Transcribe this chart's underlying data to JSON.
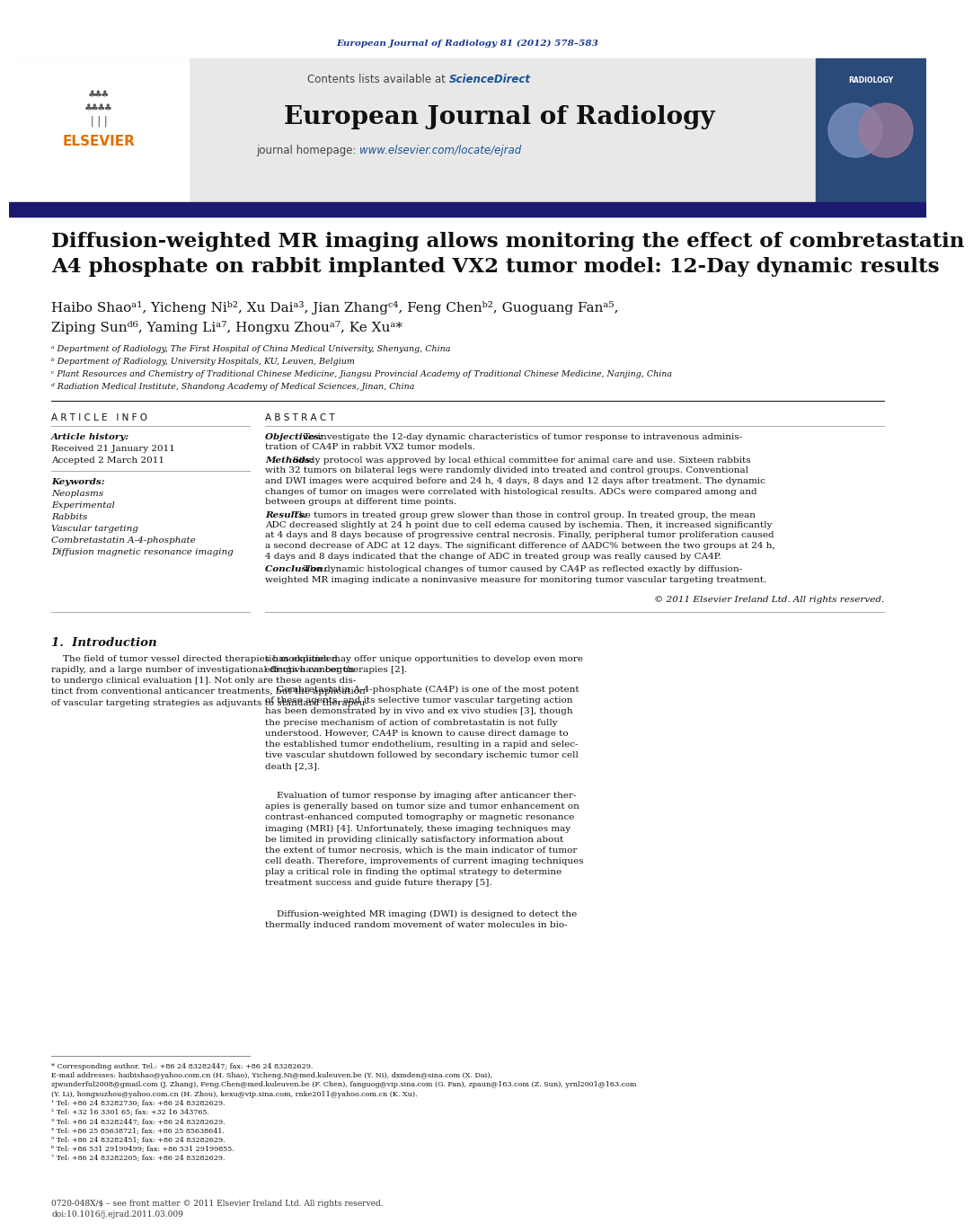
{
  "page_bg": "#ffffff",
  "top_journal_ref": "European Journal of Radiology 81 (2012) 578–583",
  "top_journal_ref_color": "#1a3a8c",
  "header_bg": "#e8e8e8",
  "header_text": "Contents lists available at",
  "sciencedirect_text": "ScienceDirect",
  "sciencedirect_color": "#1a5296",
  "journal_name": "European Journal of Radiology",
  "journal_homepage_label": "journal homepage:",
  "journal_homepage_url": "www.elsevier.com/locate/ejrad",
  "journal_homepage_color": "#1a5296",
  "nav_bar_color": "#1a1a6e",
  "article_title": "Diffusion-weighted MR imaging allows monitoring the effect of combretastatin\nA4 phosphate on rabbit implanted VX2 tumor model: 12-Day dynamic results",
  "authors_line1": "Haibo Shaoᵃ¹, Yicheng Niᵇ², Xu Daiᵃ³, Jian Zhangᶜ⁴, Feng Chenᵇ², Guoguang Fanᵃ⁵,",
  "authors_line2": "Ziping Sunᵈ⁶, Yaming Liᵃ⁷, Hongxu Zhouᵃ⁷, Ke Xuᵃ*",
  "affil_a": "ᵃ Department of Radiology, The First Hospital of China Medical University, Shenyang, China",
  "affil_b": "ᵇ Department of Radiology, University Hospitals, KU, Leuven, Belgium",
  "affil_c": "ᶜ Plant Resources and Chemistry of Traditional Chinese Medicine, Jiangsu Provincial Academy of Traditional Chinese Medicine, Nanjing, China",
  "affil_d": "ᵈ Radiation Medical Institute, Shandong Academy of Medical Sciences, Jinan, China",
  "article_info_header": "A R T I C L E   I N F O",
  "abstract_header": "A B S T R A C T",
  "article_history_label": "Article history:",
  "received": "Received 21 January 2011",
  "accepted": "Accepted 2 March 2011",
  "keywords_label": "Keywords:",
  "keywords": [
    "Neoplasms",
    "Experimental",
    "Rabbits",
    "Vascular targeting",
    "Combretastatin A-4-phosphate",
    "Diffusion magnetic resonance imaging"
  ],
  "copyright": "© 2011 Elsevier Ireland Ltd. All rights reserved.",
  "footer_lines": [
    "* Corresponding author. Tel.: +86 24 83282447; fax: +86 24 83282629.",
    "E-mail addresses: haibishao@yahoo.com.cn (H. Shao), Yicheng.Ni@med.kuleuven.be (Y. Ni), dxmden@sina.com (X. Dai),",
    "zjwunderful2008@gmail.com (J. Zhang), Feng.Chen@med.kuleuven.be (F. Chen), fanguog@vip.sina.com (G. Fan), zpaun@163.com (Z. Sun), yrnl2001@163.com",
    "(Y. Li), hongxuzhou@yahoo.com.cn (H. Zhou), kexu@vip.sina.com, rnke2011@yahoo.com.cn (K. Xu).",
    "¹ Tel: +86 24 83282730; fax: +86 24 83282629.",
    "² Tel: +32 16 3301 65; fax: +32 16 343765.",
    "³ Tel: +86 24 83282447; fax: +86 24 83282629.",
    "⁴ Tel: +86 25 85638721; fax: +86 25 85638641.",
    "⁵ Tel: +86 24 83282451; fax: +86 24 83282629.",
    "⁶ Tel: +86 531 29199499; fax: +86 531 29199855.",
    "⁷ Tel: +86 24 83282205; fax: +86 24 83282629."
  ],
  "footer_bottom_line1": "0720-048X/$ – see front matter © 2011 Elsevier Ireland Ltd. All rights reserved.",
  "footer_bottom_line2": "doi:10.1016/j.ejrad.2011.03.009"
}
